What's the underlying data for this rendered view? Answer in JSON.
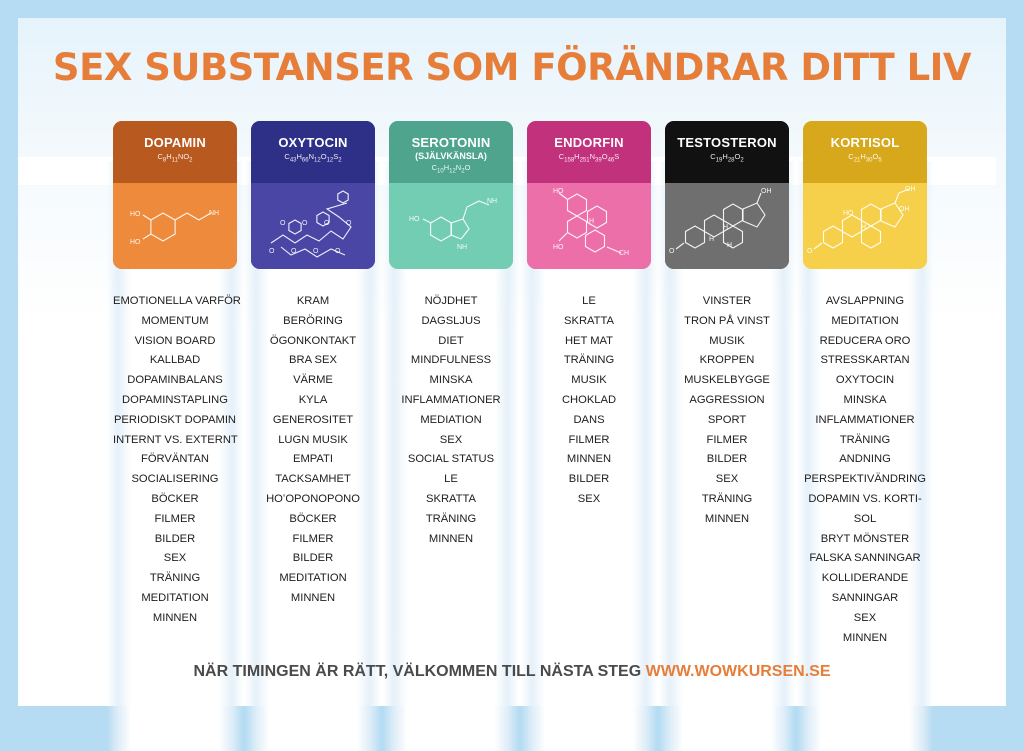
{
  "title": "SEX SUBSTANSER SOM FÖRÄNDRAR DITT LIV",
  "footer": {
    "text": "NÄR TIMINGEN ÄR RÄTT, VÄLKOMMEN TILL NÄSTA STEG",
    "url": "WWW.WOWKURSEN.SE"
  },
  "columns": [
    {
      "name": "DOPAMIN",
      "subtitle": "",
      "formula": "C8H11NO2",
      "colors": {
        "top": "#b8591f",
        "bottom": "#ee8a3b"
      },
      "molecule_icon": "dopamine-molecule-icon",
      "items": [
        "EMOTIONELLA VARFÖR",
        "MOMENTUM",
        "VISION BOARD",
        "KALLBAD",
        "DOPAMINBALANS",
        "DOPAMINSTAPLING",
        "PERIODISKT DOPAMIN",
        "INTERNT VS. EXTERNT",
        "FÖRVÄNTAN",
        "SOCIALISERING",
        "BÖCKER",
        "FILMER",
        "BILDER",
        "SEX",
        "TRÄNING",
        "MEDITATION",
        "MINNEN"
      ]
    },
    {
      "name": "OXYTOCIN",
      "subtitle": "",
      "formula": "C43H66N12O12S2",
      "colors": {
        "top": "#2e2f86",
        "bottom": "#4a46a6"
      },
      "molecule_icon": "oxytocin-molecule-icon",
      "items": [
        "KRAM",
        "BERÖRING",
        "ÖGONKONTAKT",
        "BRA SEX",
        "VÄRME",
        "KYLA",
        "GENEROSITET",
        "LUGN MUSIK",
        "EMPATI",
        "TACKSAMHET",
        "HOʻOPONOPONO",
        "BÖCKER",
        "FILMER",
        "BILDER",
        "MEDITATION",
        "MINNEN"
      ]
    },
    {
      "name": "SEROTONIN",
      "subtitle": "(SJÄLVKÄNSLA)",
      "formula": "C10H12N2O",
      "colors": {
        "top": "#4fa48d",
        "bottom": "#72cdb2"
      },
      "molecule_icon": "serotonin-molecule-icon",
      "items": [
        "NÖJDHET",
        "DAGSLJUS",
        "DIET",
        "MINDFULNESS",
        "MINSKA",
        "INFLAMMATIONER",
        "MEDIATION",
        "SEX",
        "SOCIAL STATUS",
        "LE",
        "SKRATTA",
        "TRÄNING",
        "MINNEN"
      ]
    },
    {
      "name": "ENDORFIN",
      "subtitle": "",
      "formula": "C158H251N39O46S",
      "colors": {
        "top": "#c2317c",
        "bottom": "#ed6fa9"
      },
      "molecule_icon": "endorphin-molecule-icon",
      "items": [
        "LE",
        "SKRATTA",
        "HET MAT",
        "TRÄNING",
        "MUSIK",
        "CHOKLAD",
        "DANS",
        "FILMER",
        "MINNEN",
        "BILDER",
        "SEX"
      ]
    },
    {
      "name": "TESTOSTERON",
      "subtitle": "",
      "formula": "C19H28O2",
      "colors": {
        "top": "#111111",
        "bottom": "#6f6f6f"
      },
      "molecule_icon": "testosterone-molecule-icon",
      "items": [
        "VINSTER",
        "TRON PÅ VINST",
        "MUSIK",
        "KROPPEN",
        "MUSKELBYGGE",
        "AGGRESSION",
        "SPORT",
        "FILMER",
        "BILDER",
        "SEX",
        "TRÄNING",
        "MINNEN"
      ]
    },
    {
      "name": "KORTISOL",
      "subtitle": "",
      "formula": "C21H30O5",
      "colors": {
        "top": "#d8a81c",
        "bottom": "#f6d04b"
      },
      "molecule_icon": "cortisol-molecule-icon",
      "items": [
        "AVSLAPPNING",
        "MEDITATION",
        "REDUCERA ORO",
        "STRESSKARTAN",
        "OXYTOCIN",
        "MINSKA",
        "INFLAMMATIONER",
        "TRÄNING",
        "ANDNING",
        "PERSPEKTIVÄNDRING",
        "DOPAMIN VS. KORTI-",
        "SOL",
        "BRYT MÖNSTER",
        "FALSKA SANNINGAR",
        "KOLLIDERANDE",
        "SANNINGAR",
        "SEX",
        "MINNEN"
      ]
    }
  ]
}
